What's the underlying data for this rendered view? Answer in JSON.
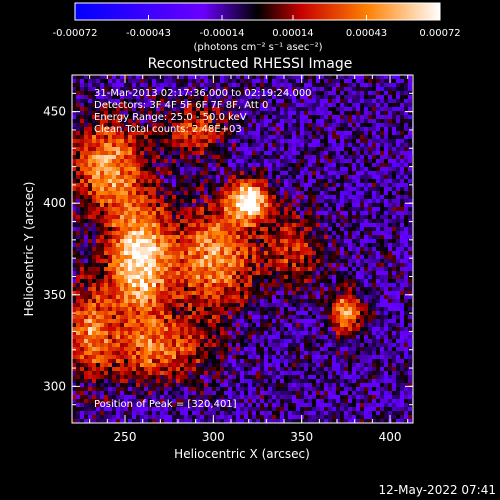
{
  "chart_data": {
    "type": "heatmap",
    "title": "Reconstructed RHESSI Image",
    "xlabel": "Heliocentric X (arcsec)",
    "ylabel": "Heliocentric Y (arcsec)",
    "xlim": [
      220,
      413
    ],
    "ylim": [
      280,
      470
    ],
    "x_ticks": [
      "250",
      "300",
      "350",
      "400"
    ],
    "y_ticks": [
      "300",
      "350",
      "400",
      "450"
    ],
    "colorbar": {
      "tick_labels": [
        "-0.00072",
        "-0.00043",
        "-0.00014",
        "0.00014",
        "0.00043",
        "0.00072"
      ],
      "range": [
        -0.00072,
        0.00072
      ],
      "units": "(photons cm⁻² s⁻¹ asec⁻²)"
    },
    "annotations": [
      "31-Mar-2013 02:17:36.000 to 02:19:24.000",
      "Detectors: 3F 4F 5F 6F 7F 8F, Att 0",
      "Energy Range: 25.0 - 50.0 keV",
      "Clean     Total counts: 2.48E+03"
    ],
    "peak_label": "Position of Peak = [320,401]",
    "peak": {
      "x": 320,
      "y": 401
    },
    "bright_sources": [
      {
        "x": 258,
        "y": 368,
        "level": 0.95,
        "sx": 12,
        "sy": 22
      },
      {
        "x": 320,
        "y": 401,
        "level": 1.0,
        "sx": 8,
        "sy": 8
      },
      {
        "x": 240,
        "y": 420,
        "level": 0.7,
        "sx": 14,
        "sy": 18
      },
      {
        "x": 300,
        "y": 370,
        "level": 0.7,
        "sx": 16,
        "sy": 20
      },
      {
        "x": 230,
        "y": 330,
        "level": 0.6,
        "sx": 10,
        "sy": 18
      },
      {
        "x": 270,
        "y": 320,
        "level": 0.55,
        "sx": 18,
        "sy": 12
      },
      {
        "x": 375,
        "y": 340,
        "level": 0.75,
        "sx": 6,
        "sy": 8
      },
      {
        "x": 345,
        "y": 375,
        "level": 0.4,
        "sx": 12,
        "sy": 14
      },
      {
        "x": 290,
        "y": 440,
        "level": 0.45,
        "sx": 12,
        "sy": 10
      }
    ],
    "timestamp": "12-May-2022 07:41"
  }
}
